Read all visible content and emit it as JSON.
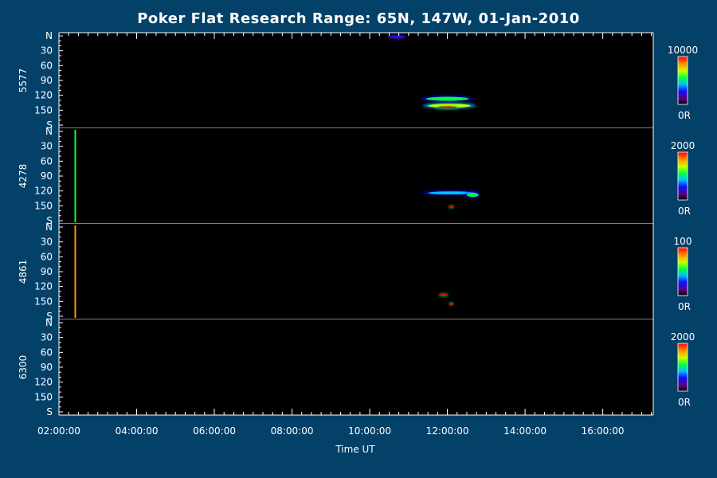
{
  "chart_data": {
    "type": "heatmap",
    "title": "Poker Flat Research Range: 65N, 147W, 01-Jan-2010",
    "xlabel": "Time UT",
    "x_ticks": [
      "02:00:00",
      "04:00:00",
      "06:00:00",
      "08:00:00",
      "10:00:00",
      "12:00:00",
      "14:00:00",
      "16:00:00"
    ],
    "x_range_hours": [
      2.0,
      17.3
    ],
    "y_ticks": [
      "N",
      "30",
      "60",
      "90",
      "120",
      "150",
      "S"
    ],
    "y_range_deg": [
      0,
      180
    ],
    "panels": [
      {
        "wavelength": "5577",
        "colorbar": {
          "max_label": "10000",
          "min_label": "0R"
        },
        "features": [
          {
            "kind": "ellipse",
            "t": 12.0,
            "angle": 127,
            "dt": 0.55,
            "da": 4,
            "intensity": 0.55
          },
          {
            "kind": "ellipse",
            "t": 12.05,
            "angle": 141,
            "dt": 0.55,
            "da": 4,
            "intensity": 0.72
          },
          {
            "kind": "ellipse",
            "t": 12.0,
            "angle": 144,
            "dt": 0.25,
            "da": 2,
            "intensity": 0.95
          },
          {
            "kind": "ellipse",
            "t": 10.7,
            "angle": 2,
            "dt": 0.2,
            "da": 3,
            "intensity": 0.25
          }
        ]
      },
      {
        "wavelength": "4278",
        "colorbar": {
          "max_label": "2000",
          "min_label": "0R"
        },
        "features": [
          {
            "kind": "ellipse",
            "t": 12.1,
            "angle": 124,
            "dt": 0.6,
            "da": 3,
            "intensity": 0.45
          },
          {
            "kind": "ellipse",
            "t": 12.65,
            "angle": 128,
            "dt": 0.15,
            "da": 4,
            "intensity": 0.5
          },
          {
            "kind": "ellipse",
            "t": 12.1,
            "angle": 152,
            "dt": 0.06,
            "da": 1.5,
            "intensity": 0.97
          },
          {
            "kind": "vline",
            "t": 2.42,
            "intensity": 0.5
          }
        ]
      },
      {
        "wavelength": "4861",
        "colorbar": {
          "max_label": "100",
          "min_label": "0R"
        },
        "features": [
          {
            "kind": "ellipse",
            "t": 11.9,
            "angle": 137,
            "dt": 0.1,
            "da": 2,
            "intensity": 0.95
          },
          {
            "kind": "ellipse",
            "t": 12.1,
            "angle": 155,
            "dt": 0.05,
            "da": 1,
            "intensity": 0.95
          },
          {
            "kind": "vline",
            "t": 2.42,
            "intensity": 0.9
          }
        ]
      },
      {
        "wavelength": "6300",
        "colorbar": {
          "max_label": "2000",
          "min_label": "0R"
        },
        "features": []
      }
    ]
  }
}
